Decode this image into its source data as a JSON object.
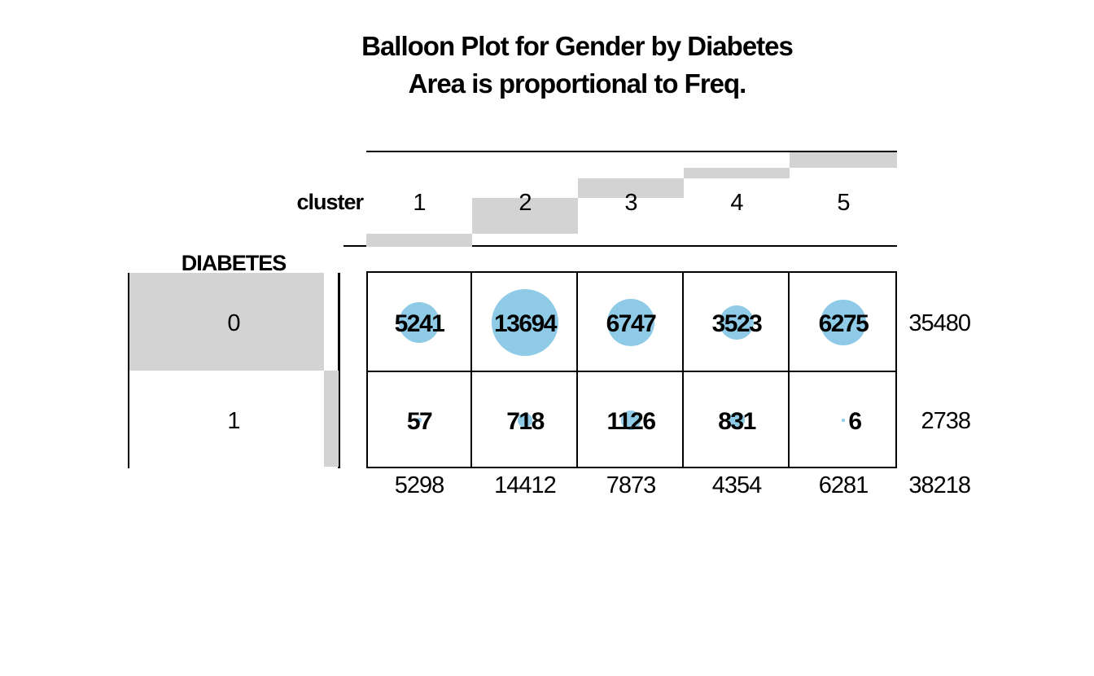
{
  "title": {
    "line1": "Balloon Plot for Gender by Diabetes",
    "line2": "Area is proportional to Freq."
  },
  "column_header": {
    "label": "cluster"
  },
  "row_header": {
    "label": "DIABETES"
  },
  "chart_data": {
    "type": "balloon",
    "title": "Balloon Plot for Gender by Diabetes",
    "subtitle": "Area is proportional to Freq.",
    "column_variable": "cluster",
    "row_variable": "DIABETES",
    "columns": [
      "1",
      "2",
      "3",
      "4",
      "5"
    ],
    "rows": [
      "0",
      "1"
    ],
    "values": [
      [
        5241,
        13694,
        6747,
        3523,
        6275
      ],
      [
        57,
        718,
        1126,
        831,
        6
      ]
    ],
    "row_totals": [
      35480,
      2738
    ],
    "column_totals": [
      5298,
      14412,
      7873,
      4354,
      6281
    ],
    "grand_total": 38218,
    "balloon_color": "#8FCBE7",
    "margin_bar_color": "#D3D3D3",
    "text_color": "#000000",
    "area_note": "balloon area proportional to cell frequency; gray margin bars show row/column shares of grand total"
  }
}
